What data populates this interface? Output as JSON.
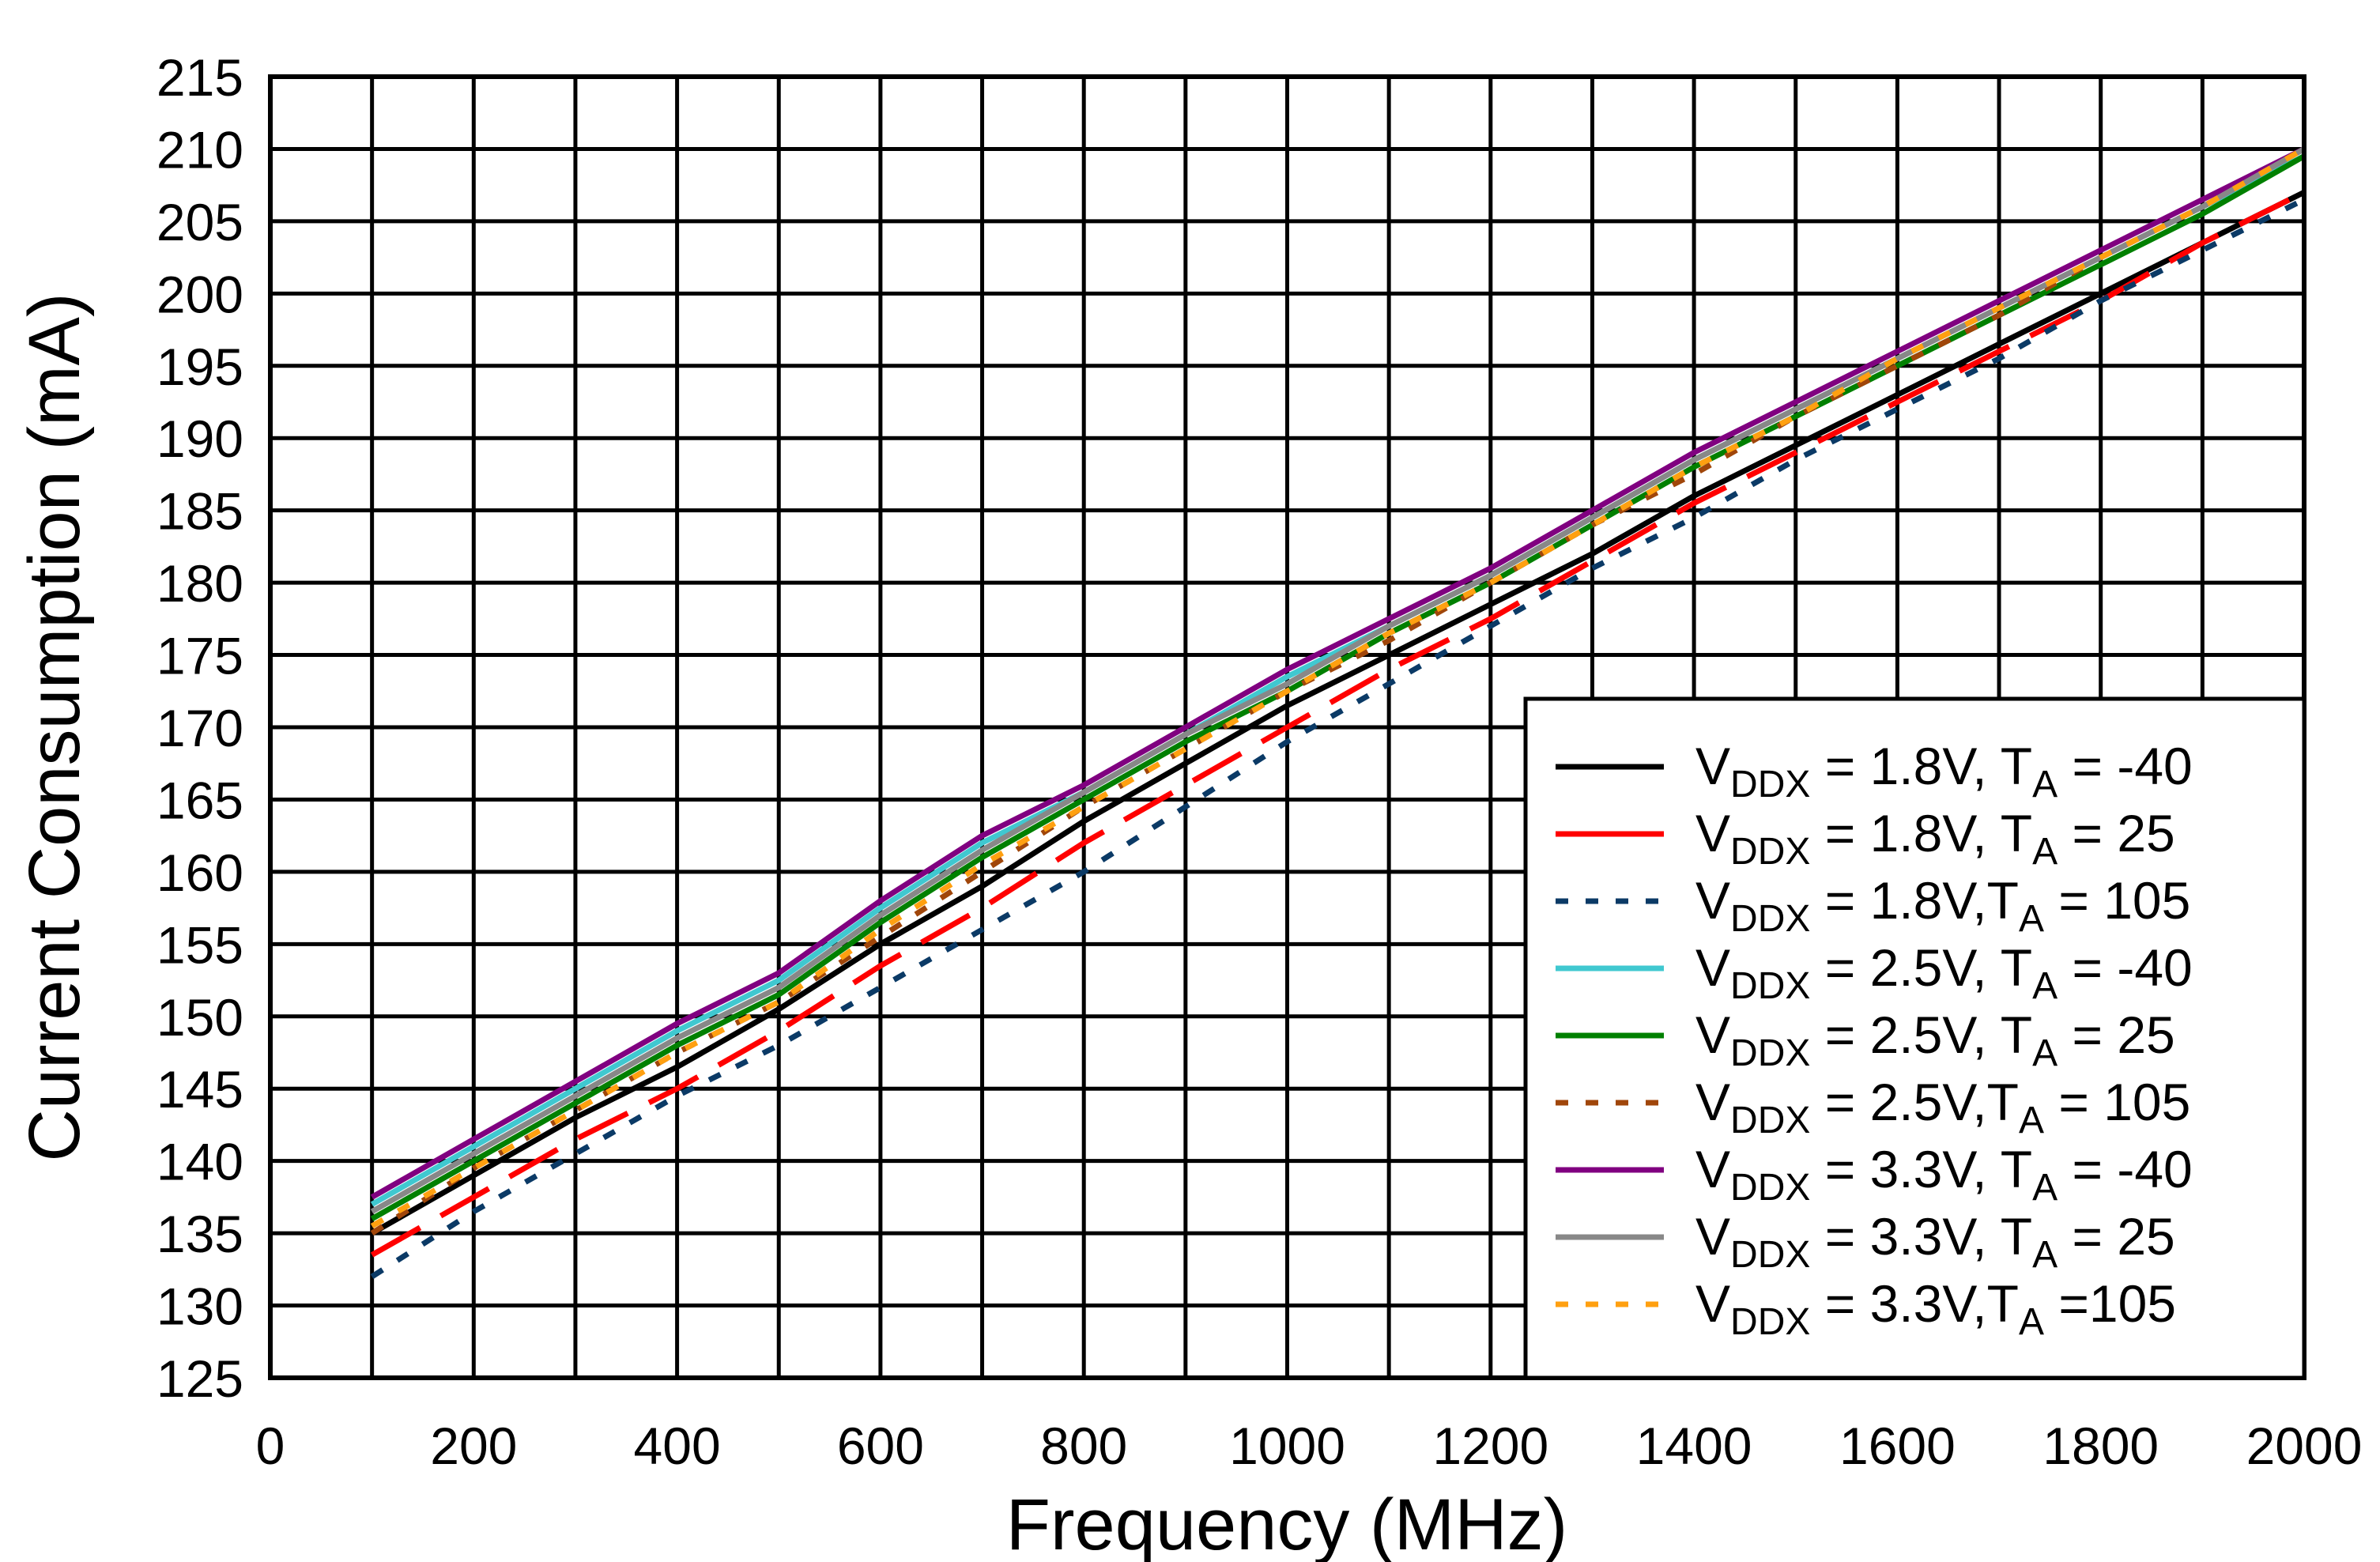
{
  "chart_data": {
    "type": "line",
    "title": "",
    "xlabel": "Frequency (MHz)",
    "ylabel": "Current Consumption (mA)",
    "xlim": [
      0,
      2000
    ],
    "ylim": [
      125,
      215
    ],
    "x_ticks": [
      0,
      200,
      400,
      600,
      800,
      1000,
      1200,
      1400,
      1600,
      1800,
      2000
    ],
    "y_ticks": [
      125,
      130,
      135,
      140,
      145,
      150,
      155,
      160,
      165,
      170,
      175,
      180,
      185,
      190,
      195,
      200,
      205,
      210,
      215
    ],
    "grid": true,
    "legend_position": "bottom-right",
    "x": [
      100,
      200,
      300,
      400,
      500,
      600,
      700,
      800,
      900,
      1000,
      1100,
      1200,
      1300,
      1400,
      1500,
      1600,
      1700,
      1800,
      1900,
      2000
    ],
    "series": [
      {
        "label_parts": [
          "V",
          "DDX",
          " = 1.8V, T",
          "A",
          " = -40"
        ],
        "color": "#000000",
        "dash": "solid",
        "values": [
          135,
          139,
          143,
          146.5,
          150.5,
          155,
          159,
          163.5,
          167.5,
          171.5,
          175,
          178.5,
          182,
          186,
          189.5,
          193,
          196.5,
          200,
          203.5,
          207
        ]
      },
      {
        "label_parts": [
          "V",
          "DDX",
          " = 1.8V, T",
          "A",
          " = 25"
        ],
        "color": "#ff0000",
        "dash": "longdash",
        "values": [
          133.5,
          137.5,
          141.5,
          145,
          149,
          153.5,
          157.5,
          162,
          166,
          170,
          174,
          177.5,
          181.5,
          185.5,
          189,
          192.5,
          196,
          199.5,
          203.5,
          207
        ]
      },
      {
        "label_parts": [
          "V",
          "DDX",
          " = 1.8V,T",
          "A",
          " = 105"
        ],
        "color": "#0b3a66",
        "dash": "dot",
        "values": [
          132,
          136.5,
          140.5,
          144.5,
          148,
          152,
          156,
          160,
          164.5,
          169,
          173,
          177,
          181,
          184.5,
          188.5,
          192,
          195.5,
          199.5,
          203,
          206.5
        ]
      },
      {
        "label_parts": [
          "V",
          "DDX",
          " = 2.5V, T",
          "A",
          " = -40"
        ],
        "color": "#40c8d0",
        "dash": "solid",
        "values": [
          137,
          141,
          145,
          149,
          152.5,
          157.5,
          162,
          165.5,
          169.5,
          173.5,
          177,
          180.5,
          184.5,
          188.5,
          192,
          195.5,
          199,
          202.5,
          206,
          209.5
        ]
      },
      {
        "label_parts": [
          "V",
          "DDX",
          " = 2.5V, T",
          "A",
          " = 25"
        ],
        "color": "#008000",
        "dash": "solid",
        "values": [
          136,
          140,
          144,
          148,
          151.5,
          156.5,
          161,
          165,
          169,
          172.5,
          176.5,
          180,
          184,
          188,
          191.5,
          195,
          198.5,
          202,
          205.5,
          209.5
        ]
      },
      {
        "label_parts": [
          "V",
          "DDX",
          " = 2.5V,T",
          "A",
          " = 105"
        ],
        "color": "#a0460a",
        "dash": "dot",
        "values": [
          135,
          139.5,
          143.5,
          147.5,
          151,
          155.5,
          160,
          164.5,
          168.5,
          172.5,
          176,
          180,
          184,
          187.5,
          191.5,
          195,
          198.5,
          202.5,
          206,
          210
        ]
      },
      {
        "label_parts": [
          "V",
          "DDX",
          " = 3.3V, T",
          "A",
          " = -40"
        ],
        "color": "#800080",
        "dash": "solid",
        "values": [
          137.5,
          141.5,
          145.5,
          149.5,
          153,
          158,
          162.5,
          166,
          170,
          174,
          177.5,
          181,
          185,
          189,
          192.5,
          196,
          199.5,
          203,
          206.5,
          210
        ]
      },
      {
        "label_parts": [
          "V",
          "DDX",
          " = 3.3V, T",
          "A",
          " = 25"
        ],
        "color": "#888888",
        "dash": "solid",
        "values": [
          136.5,
          140.5,
          144.5,
          148.5,
          152,
          157,
          161.5,
          165.5,
          169.5,
          173,
          177,
          180.5,
          184.5,
          188.5,
          192,
          195.5,
          199,
          202.5,
          206,
          210
        ]
      },
      {
        "label_parts": [
          "V",
          "DDX",
          " = 3.3V,T",
          "A",
          " =105"
        ],
        "color": "#ffa010",
        "dash": "dot",
        "values": [
          135.5,
          139.5,
          143.5,
          147.5,
          151,
          156,
          160.5,
          164.5,
          168.5,
          172.5,
          176.5,
          180,
          184,
          188,
          191.5,
          195.5,
          199,
          202.5,
          206,
          210
        ]
      }
    ]
  }
}
